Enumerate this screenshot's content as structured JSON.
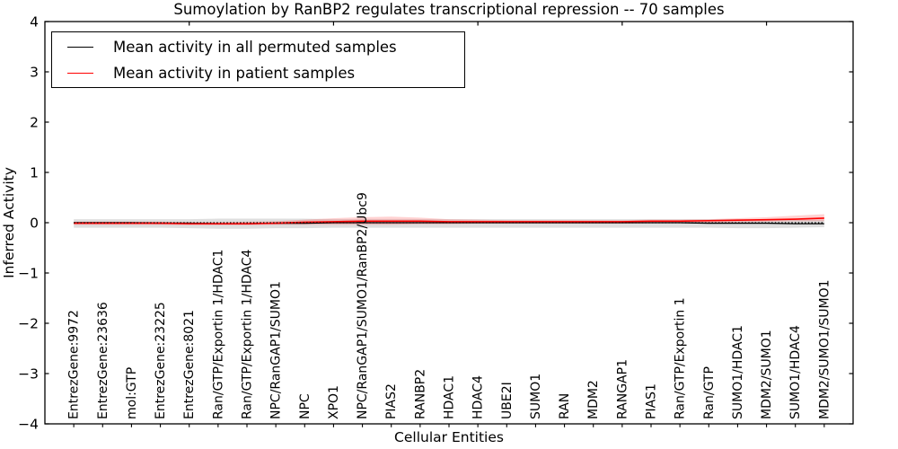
{
  "legend": {
    "items": [
      {
        "label": "Mean activity in all permuted samples",
        "color": "#000000"
      },
      {
        "label": "Mean activity in patient samples",
        "color": "#ff0000"
      }
    ]
  },
  "chart_data": {
    "type": "line",
    "title": "Sumoylation by RanBP2 regulates transcriptional repression -- 70 samples",
    "xlabel": "Cellular Entities",
    "ylabel": "Inferred Activity",
    "ylim": [
      -4,
      4
    ],
    "xlim": [
      -1,
      27
    ],
    "yticks": [
      4,
      3,
      2,
      1,
      0,
      -1,
      -2,
      -3,
      -4
    ],
    "ytick_labels": [
      "4",
      "3",
      "2",
      "1",
      "0",
      "−1",
      "−2",
      "−3",
      "−4"
    ],
    "x_major_ticks": [
      4,
      9,
      14,
      19,
      24
    ],
    "grid": false,
    "legend_position": "upper left",
    "categories": [
      "EntrezGene:9972",
      "EntrezGene:23636",
      "mol:GTP",
      "EntrezGene:23225",
      "EntrezGene:8021",
      "Ran/GTP/Exportin 1/HDAC1",
      "Ran/GTP/Exportin 1/HDAC4",
      "NPC/RanGAP1/SUMO1",
      "NPC",
      "XPO1",
      "NPC/RanGAP1/SUMO1/RanBP2/Ubc9",
      "PIAS2",
      "RANBP2",
      "HDAC1",
      "HDAC4",
      "UBE2I",
      "SUMO1",
      "RAN",
      "MDM2",
      "RANGAP1",
      "PIAS1",
      "Ran/GTP/Exportin 1",
      "Ran/GTP",
      "SUMO1/HDAC1",
      "MDM2/SUMO1",
      "SUMO1/HDAC4",
      "MDM2/SUMO1/SUMO1"
    ],
    "series": [
      {
        "name": "Mean activity in all permuted samples",
        "color": "#000000",
        "values": [
          0,
          0,
          0,
          -0.01,
          -0.01,
          -0.02,
          -0.02,
          -0.01,
          -0.01,
          0,
          0,
          0,
          0,
          0,
          0,
          0,
          0,
          0,
          0,
          0,
          0,
          0,
          -0.01,
          -0.01,
          -0.01,
          -0.02,
          -0.02
        ]
      },
      {
        "name": "Mean activity in patient samples",
        "color": "#ff0000",
        "values": [
          -0.01,
          -0.01,
          -0.01,
          -0.01,
          -0.02,
          -0.02,
          -0.02,
          -0.01,
          0.01,
          0.02,
          0.03,
          0.03,
          0.03,
          0.02,
          0.02,
          0.02,
          0.02,
          0.02,
          0.02,
          0.02,
          0.03,
          0.03,
          0.04,
          0.05,
          0.06,
          0.07,
          0.09
        ]
      }
    ],
    "bands": [
      {
        "name": "permuted-samples-band",
        "color": "#000000",
        "opacity": 0.13,
        "upper": [
          0.07,
          0.07,
          0.07,
          0.07,
          0.07,
          0.08,
          0.08,
          0.08,
          0.08,
          0.07,
          0.07,
          0.07,
          0.07,
          0.07,
          0.07,
          0.07,
          0.07,
          0.07,
          0.07,
          0.07,
          0.07,
          0.07,
          0.07,
          0.07,
          0.06,
          0.06,
          0.06
        ],
        "lower": [
          -0.1,
          -0.1,
          -0.1,
          -0.1,
          -0.11,
          -0.12,
          -0.12,
          -0.11,
          -0.11,
          -0.1,
          -0.1,
          -0.1,
          -0.1,
          -0.1,
          -0.1,
          -0.1,
          -0.1,
          -0.1,
          -0.1,
          -0.1,
          -0.1,
          -0.1,
          -0.1,
          -0.11,
          -0.11,
          -0.1,
          -0.09
        ]
      },
      {
        "name": "patient-samples-band",
        "color": "#ff0000",
        "opacity": 0.18,
        "upper": [
          0.02,
          0.02,
          0.02,
          0.02,
          0.01,
          0.01,
          0.02,
          0.03,
          0.06,
          0.09,
          0.11,
          0.12,
          0.1,
          0.07,
          0.06,
          0.05,
          0.05,
          0.05,
          0.05,
          0.05,
          0.06,
          0.06,
          0.07,
          0.09,
          0.11,
          0.14,
          0.17
        ],
        "lower": [
          -0.04,
          -0.04,
          -0.04,
          -0.04,
          -0.05,
          -0.05,
          -0.05,
          -0.04,
          -0.04,
          -0.04,
          -0.04,
          -0.04,
          -0.03,
          -0.03,
          -0.02,
          -0.02,
          -0.02,
          -0.02,
          -0.02,
          -0.02,
          -0.01,
          -0.01,
          0,
          0.01,
          0.02,
          0.03,
          0.03
        ]
      }
    ],
    "reference_line": {
      "y": 0,
      "style": "dotted",
      "color": "#000000"
    }
  }
}
